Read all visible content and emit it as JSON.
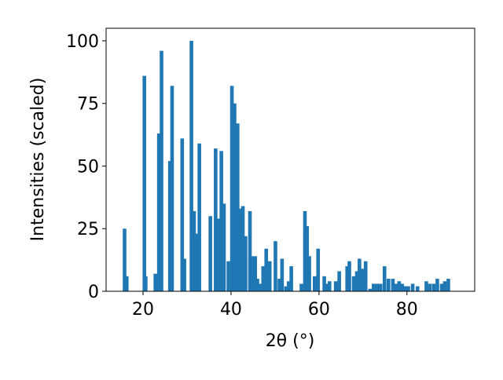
{
  "chart_data": {
    "type": "bar",
    "xlabel": "2θ (°)",
    "ylabel": "Intensities (scaled)",
    "color": "#1f77b4",
    "x": [
      15.8,
      16.3,
      20.3,
      20.6,
      22.8,
      23.6,
      24.2,
      26.1,
      26.6,
      28.9,
      29.4,
      31.0,
      31.6,
      32.1,
      32.8,
      35.3,
      36.5,
      37.1,
      37.8,
      38.4,
      39.4,
      40.2,
      40.8,
      41.5,
      42.0,
      42.7,
      43.3,
      44.3,
      44.9,
      45.5,
      46.0,
      46.6,
      47.3,
      48.0,
      48.8,
      50.1,
      51.0,
      51.6,
      52.5,
      53.1,
      53.7,
      56.0,
      56.8,
      57.3,
      57.8,
      59.0,
      59.8,
      61.2,
      61.9,
      62.4,
      63.8,
      64.6,
      66.4,
      66.9,
      67.9,
      68.6,
      69.2,
      69.8,
      70.6,
      71.6,
      72.4,
      73.2,
      74.0,
      74.9,
      75.8,
      76.8,
      77.4,
      78.2,
      78.9,
      79.6,
      80.3,
      81.3,
      82.4,
      84.4,
      85.2,
      86.1,
      86.9,
      87.9,
      88.6,
      89.4
    ],
    "values": [
      25,
      6,
      86,
      6,
      7,
      63,
      96,
      52,
      82,
      61,
      13,
      100,
      32,
      23,
      59,
      30,
      57,
      29,
      56,
      35,
      12,
      82,
      75,
      67,
      33,
      34,
      22,
      32,
      14,
      14,
      5,
      3,
      10,
      17,
      12,
      20,
      5,
      13,
      2,
      4,
      10,
      3,
      32,
      26,
      14,
      6,
      17,
      6,
      3,
      4,
      4,
      8,
      10,
      12,
      6,
      8,
      13,
      9,
      12,
      1,
      3,
      3,
      3,
      10,
      5,
      5,
      3,
      4,
      3,
      2,
      2,
      3,
      2,
      4,
      3,
      3,
      5,
      3,
      4,
      5
    ],
    "xlim": [
      11.6,
      95.4
    ],
    "ylim": [
      0,
      105
    ],
    "xticks": [
      20,
      40,
      60,
      80
    ],
    "yticks": [
      0,
      25,
      50,
      75,
      100
    ]
  }
}
